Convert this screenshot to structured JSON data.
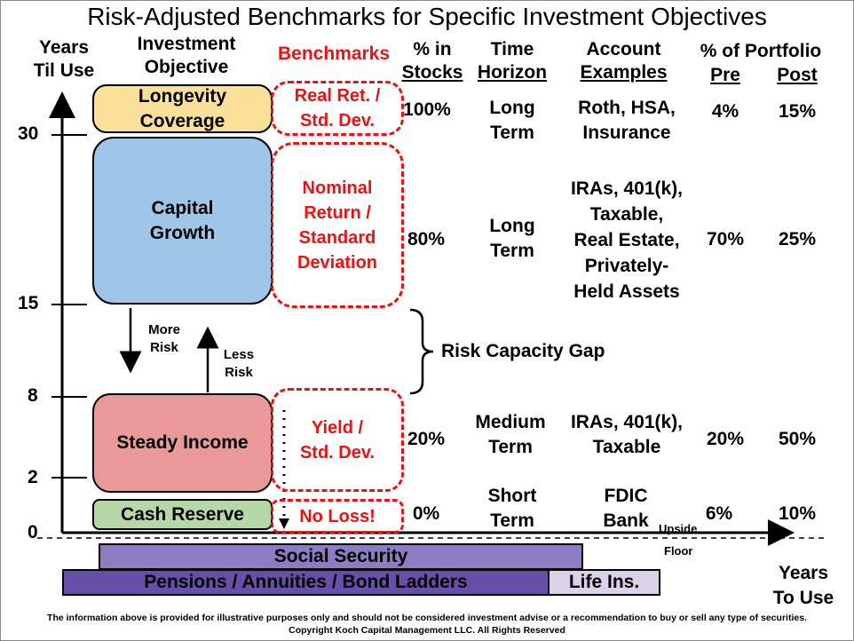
{
  "title": "Risk-Adjusted Benchmarks for Specific Investment Objectives",
  "headers": {
    "years_line1": "Years",
    "years_line2": "Til Use",
    "objective_line1": "Investment",
    "objective_line2": "Objective",
    "benchmarks": "Benchmarks",
    "stocks_line1": "% in",
    "stocks_line2": "Stocks",
    "horizon_line1": "Time",
    "horizon_line2": "Horizon",
    "accounts_line1": "Account",
    "accounts_line2": "Examples",
    "portfolio": "% of Portfolio",
    "pre": "Pre",
    "post": "Post"
  },
  "y_axis_ticks": [
    "30",
    "15",
    "8",
    "2",
    "0"
  ],
  "rows": [
    {
      "objective_lines": [
        "Longevity",
        "Coverage"
      ],
      "benchmark_lines": [
        "Real Ret. /",
        "Std. Dev."
      ],
      "stocks": "100%",
      "horizon_lines": [
        "Long",
        "Term"
      ],
      "account_lines": [
        "Roth, HSA,",
        "Insurance"
      ],
      "pre": "4%",
      "post": "15%",
      "color": "#fbe09a"
    },
    {
      "objective_lines": [
        "Capital",
        "Growth"
      ],
      "benchmark_lines": [
        "Nominal",
        "Return /",
        "Standard",
        "Deviation"
      ],
      "stocks": "80%",
      "horizon_lines": [
        "Long",
        "Term"
      ],
      "account_lines": [
        "IRAs, 401(k),",
        "Taxable,",
        "Real Estate,",
        "Privately-",
        "Held Assets"
      ],
      "pre": "70%",
      "post": "25%",
      "color": "#9fc5e8"
    },
    {
      "objective_lines": [
        "Steady Income"
      ],
      "benchmark_lines": [
        "Yield /",
        "Std. Dev."
      ],
      "stocks": "20%",
      "horizon_lines": [
        "Medium",
        "Term"
      ],
      "account_lines": [
        "IRAs, 401(k),",
        "Taxable"
      ],
      "pre": "20%",
      "post": "50%",
      "color": "#ea9999"
    },
    {
      "objective_lines": [
        "Cash Reserve"
      ],
      "benchmark_lines": [
        "No Loss!"
      ],
      "stocks": "0%",
      "horizon_lines": [
        "Short",
        "Term"
      ],
      "account_lines": [
        "FDIC",
        "Bank"
      ],
      "pre": "6%",
      "post": "10%",
      "color": "#b6d7a8"
    }
  ],
  "more_risk_lines": [
    "More",
    "Risk"
  ],
  "less_risk_lines": [
    "Less",
    "Risk"
  ],
  "risk_capacity_gap": "Risk Capacity Gap",
  "upside_label": "Upside",
  "floor_label": "Floor",
  "floor_bars": {
    "social_security": "Social Security",
    "pensions": "Pensions / Annuities / Bond Ladders",
    "life_ins": "Life Ins.",
    "social_security_color": "#8e7cc3",
    "pensions_color": "#674ea7",
    "life_ins_color": "#d9d2e9"
  },
  "x_axis_label_line1": "Years",
  "x_axis_label_line2": "To Use",
  "footer_line1": "The information above is provided for illustrative purposes only and should not be considered investment advise or a recommendation to buy or sell any type of securities.",
  "footer_line2": "Copyright Koch Capital Management LLC. All Rights Reserved"
}
